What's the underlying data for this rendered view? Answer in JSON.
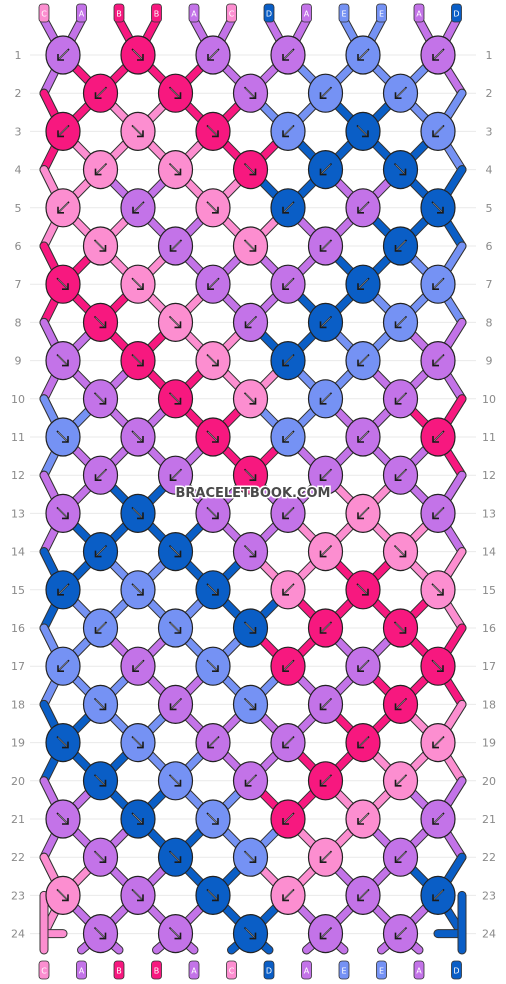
{
  "colors": {
    "A": "#c373e8",
    "B": "#f7187f",
    "C": "#fc8ed0",
    "D": "#0a5ec6",
    "E": "#7592f4"
  },
  "threads_top": [
    "C",
    "A",
    "B",
    "B",
    "A",
    "C",
    "D",
    "A",
    "E",
    "E",
    "A",
    "D"
  ],
  "threads_bottom": [
    "C",
    "A",
    "B",
    "B",
    "A",
    "C",
    "D",
    "A",
    "E",
    "E",
    "A",
    "D"
  ],
  "row_labels": [
    "1",
    "2",
    "3",
    "4",
    "5",
    "6",
    "7",
    "8",
    "9",
    "10",
    "11",
    "12",
    "13",
    "14",
    "15",
    "16",
    "17",
    "18",
    "19",
    "20",
    "21",
    "22",
    "23",
    "24"
  ],
  "watermark": "BRACELETBOOK.COM",
  "knot_rows": [
    [
      {
        "c": "A",
        "d": "L"
      },
      {
        "c": "B",
        "d": "R"
      },
      {
        "c": "A",
        "d": "L"
      },
      {
        "c": "A",
        "d": "L"
      },
      {
        "c": "E",
        "d": "L"
      },
      {
        "c": "A",
        "d": "L"
      }
    ],
    [
      {
        "c": "B",
        "d": "L"
      },
      {
        "c": "B",
        "d": "R"
      },
      {
        "c": "A",
        "d": "R"
      },
      {
        "c": "E",
        "d": "L"
      },
      {
        "c": "E",
        "d": "L"
      }
    ],
    [
      {
        "c": "B",
        "d": "L"
      },
      {
        "c": "C",
        "d": "R"
      },
      {
        "c": "B",
        "d": "R"
      },
      {
        "c": "E",
        "d": "L"
      },
      {
        "c": "D",
        "d": "R"
      },
      {
        "c": "E",
        "d": "L"
      }
    ],
    [
      {
        "c": "C",
        "d": "L"
      },
      {
        "c": "C",
        "d": "R"
      },
      {
        "c": "B",
        "d": "R"
      },
      {
        "c": "D",
        "d": "L"
      },
      {
        "c": "D",
        "d": "R"
      }
    ],
    [
      {
        "c": "C",
        "d": "L"
      },
      {
        "c": "A",
        "d": "L"
      },
      {
        "c": "C",
        "d": "R"
      },
      {
        "c": "D",
        "d": "L"
      },
      {
        "c": "A",
        "d": "L"
      },
      {
        "c": "D",
        "d": "R"
      }
    ],
    [
      {
        "c": "C",
        "d": "R"
      },
      {
        "c": "A",
        "d": "L"
      },
      {
        "c": "C",
        "d": "R"
      },
      {
        "c": "A",
        "d": "L"
      },
      {
        "c": "D",
        "d": "L"
      }
    ],
    [
      {
        "c": "B",
        "d": "R"
      },
      {
        "c": "C",
        "d": "R"
      },
      {
        "c": "A",
        "d": "L"
      },
      {
        "c": "A",
        "d": "L"
      },
      {
        "c": "D",
        "d": "L"
      },
      {
        "c": "E",
        "d": "L"
      }
    ],
    [
      {
        "c": "B",
        "d": "R"
      },
      {
        "c": "C",
        "d": "R"
      },
      {
        "c": "A",
        "d": "L"
      },
      {
        "c": "D",
        "d": "L"
      },
      {
        "c": "E",
        "d": "L"
      }
    ],
    [
      {
        "c": "A",
        "d": "R"
      },
      {
        "c": "B",
        "d": "R"
      },
      {
        "c": "C",
        "d": "R"
      },
      {
        "c": "D",
        "d": "L"
      },
      {
        "c": "E",
        "d": "L"
      },
      {
        "c": "A",
        "d": "L"
      }
    ],
    [
      {
        "c": "A",
        "d": "R"
      },
      {
        "c": "B",
        "d": "R"
      },
      {
        "c": "C",
        "d": "R"
      },
      {
        "c": "E",
        "d": "L"
      },
      {
        "c": "A",
        "d": "L"
      }
    ],
    [
      {
        "c": "E",
        "d": "R"
      },
      {
        "c": "A",
        "d": "R"
      },
      {
        "c": "B",
        "d": "R"
      },
      {
        "c": "E",
        "d": "L"
      },
      {
        "c": "A",
        "d": "L"
      },
      {
        "c": "B",
        "d": "L"
      }
    ],
    [
      {
        "c": "A",
        "d": "L"
      },
      {
        "c": "A",
        "d": "L"
      },
      {
        "c": "B",
        "d": "R"
      },
      {
        "c": "A",
        "d": "L"
      },
      {
        "c": "A",
        "d": "L"
      }
    ],
    [
      {
        "c": "A",
        "d": "R"
      },
      {
        "c": "D",
        "d": "R"
      },
      {
        "c": "A",
        "d": "R"
      },
      {
        "c": "A",
        "d": "L"
      },
      {
        "c": "C",
        "d": "L"
      },
      {
        "c": "A",
        "d": "L"
      }
    ],
    [
      {
        "c": "D",
        "d": "L"
      },
      {
        "c": "D",
        "d": "R"
      },
      {
        "c": "A",
        "d": "R"
      },
      {
        "c": "C",
        "d": "L"
      },
      {
        "c": "C",
        "d": "R"
      }
    ],
    [
      {
        "c": "D",
        "d": "L"
      },
      {
        "c": "E",
        "d": "R"
      },
      {
        "c": "D",
        "d": "R"
      },
      {
        "c": "C",
        "d": "L"
      },
      {
        "c": "B",
        "d": "R"
      },
      {
        "c": "C",
        "d": "R"
      }
    ],
    [
      {
        "c": "E",
        "d": "L"
      },
      {
        "c": "E",
        "d": "R"
      },
      {
        "c": "D",
        "d": "R"
      },
      {
        "c": "B",
        "d": "L"
      },
      {
        "c": "B",
        "d": "R"
      }
    ],
    [
      {
        "c": "E",
        "d": "L"
      },
      {
        "c": "A",
        "d": "L"
      },
      {
        "c": "E",
        "d": "R"
      },
      {
        "c": "B",
        "d": "L"
      },
      {
        "c": "A",
        "d": "L"
      },
      {
        "c": "B",
        "d": "R"
      }
    ],
    [
      {
        "c": "E",
        "d": "R"
      },
      {
        "c": "A",
        "d": "L"
      },
      {
        "c": "E",
        "d": "R"
      },
      {
        "c": "A",
        "d": "L"
      },
      {
        "c": "B",
        "d": "L"
      }
    ],
    [
      {
        "c": "D",
        "d": "R"
      },
      {
        "c": "E",
        "d": "R"
      },
      {
        "c": "A",
        "d": "L"
      },
      {
        "c": "A",
        "d": "L"
      },
      {
        "c": "B",
        "d": "L"
      },
      {
        "c": "C",
        "d": "L"
      }
    ],
    [
      {
        "c": "D",
        "d": "R"
      },
      {
        "c": "E",
        "d": "R"
      },
      {
        "c": "A",
        "d": "L"
      },
      {
        "c": "B",
        "d": "L"
      },
      {
        "c": "C",
        "d": "L"
      }
    ],
    [
      {
        "c": "A",
        "d": "R"
      },
      {
        "c": "D",
        "d": "R"
      },
      {
        "c": "E",
        "d": "R"
      },
      {
        "c": "B",
        "d": "L"
      },
      {
        "c": "C",
        "d": "L"
      },
      {
        "c": "A",
        "d": "L"
      }
    ],
    [
      {
        "c": "A",
        "d": "R"
      },
      {
        "c": "D",
        "d": "R"
      },
      {
        "c": "E",
        "d": "R"
      },
      {
        "c": "C",
        "d": "L"
      },
      {
        "c": "A",
        "d": "L"
      }
    ],
    [
      {
        "c": "C",
        "d": "R"
      },
      {
        "c": "A",
        "d": "R"
      },
      {
        "c": "D",
        "d": "R"
      },
      {
        "c": "C",
        "d": "L"
      },
      {
        "c": "A",
        "d": "L"
      },
      {
        "c": "D",
        "d": "L"
      }
    ],
    [
      {
        "c": "A",
        "d": "R"
      },
      {
        "c": "A",
        "d": "R"
      },
      {
        "c": "D",
        "d": "R"
      },
      {
        "c": "A",
        "d": "L"
      },
      {
        "c": "A",
        "d": "L"
      }
    ]
  ]
}
